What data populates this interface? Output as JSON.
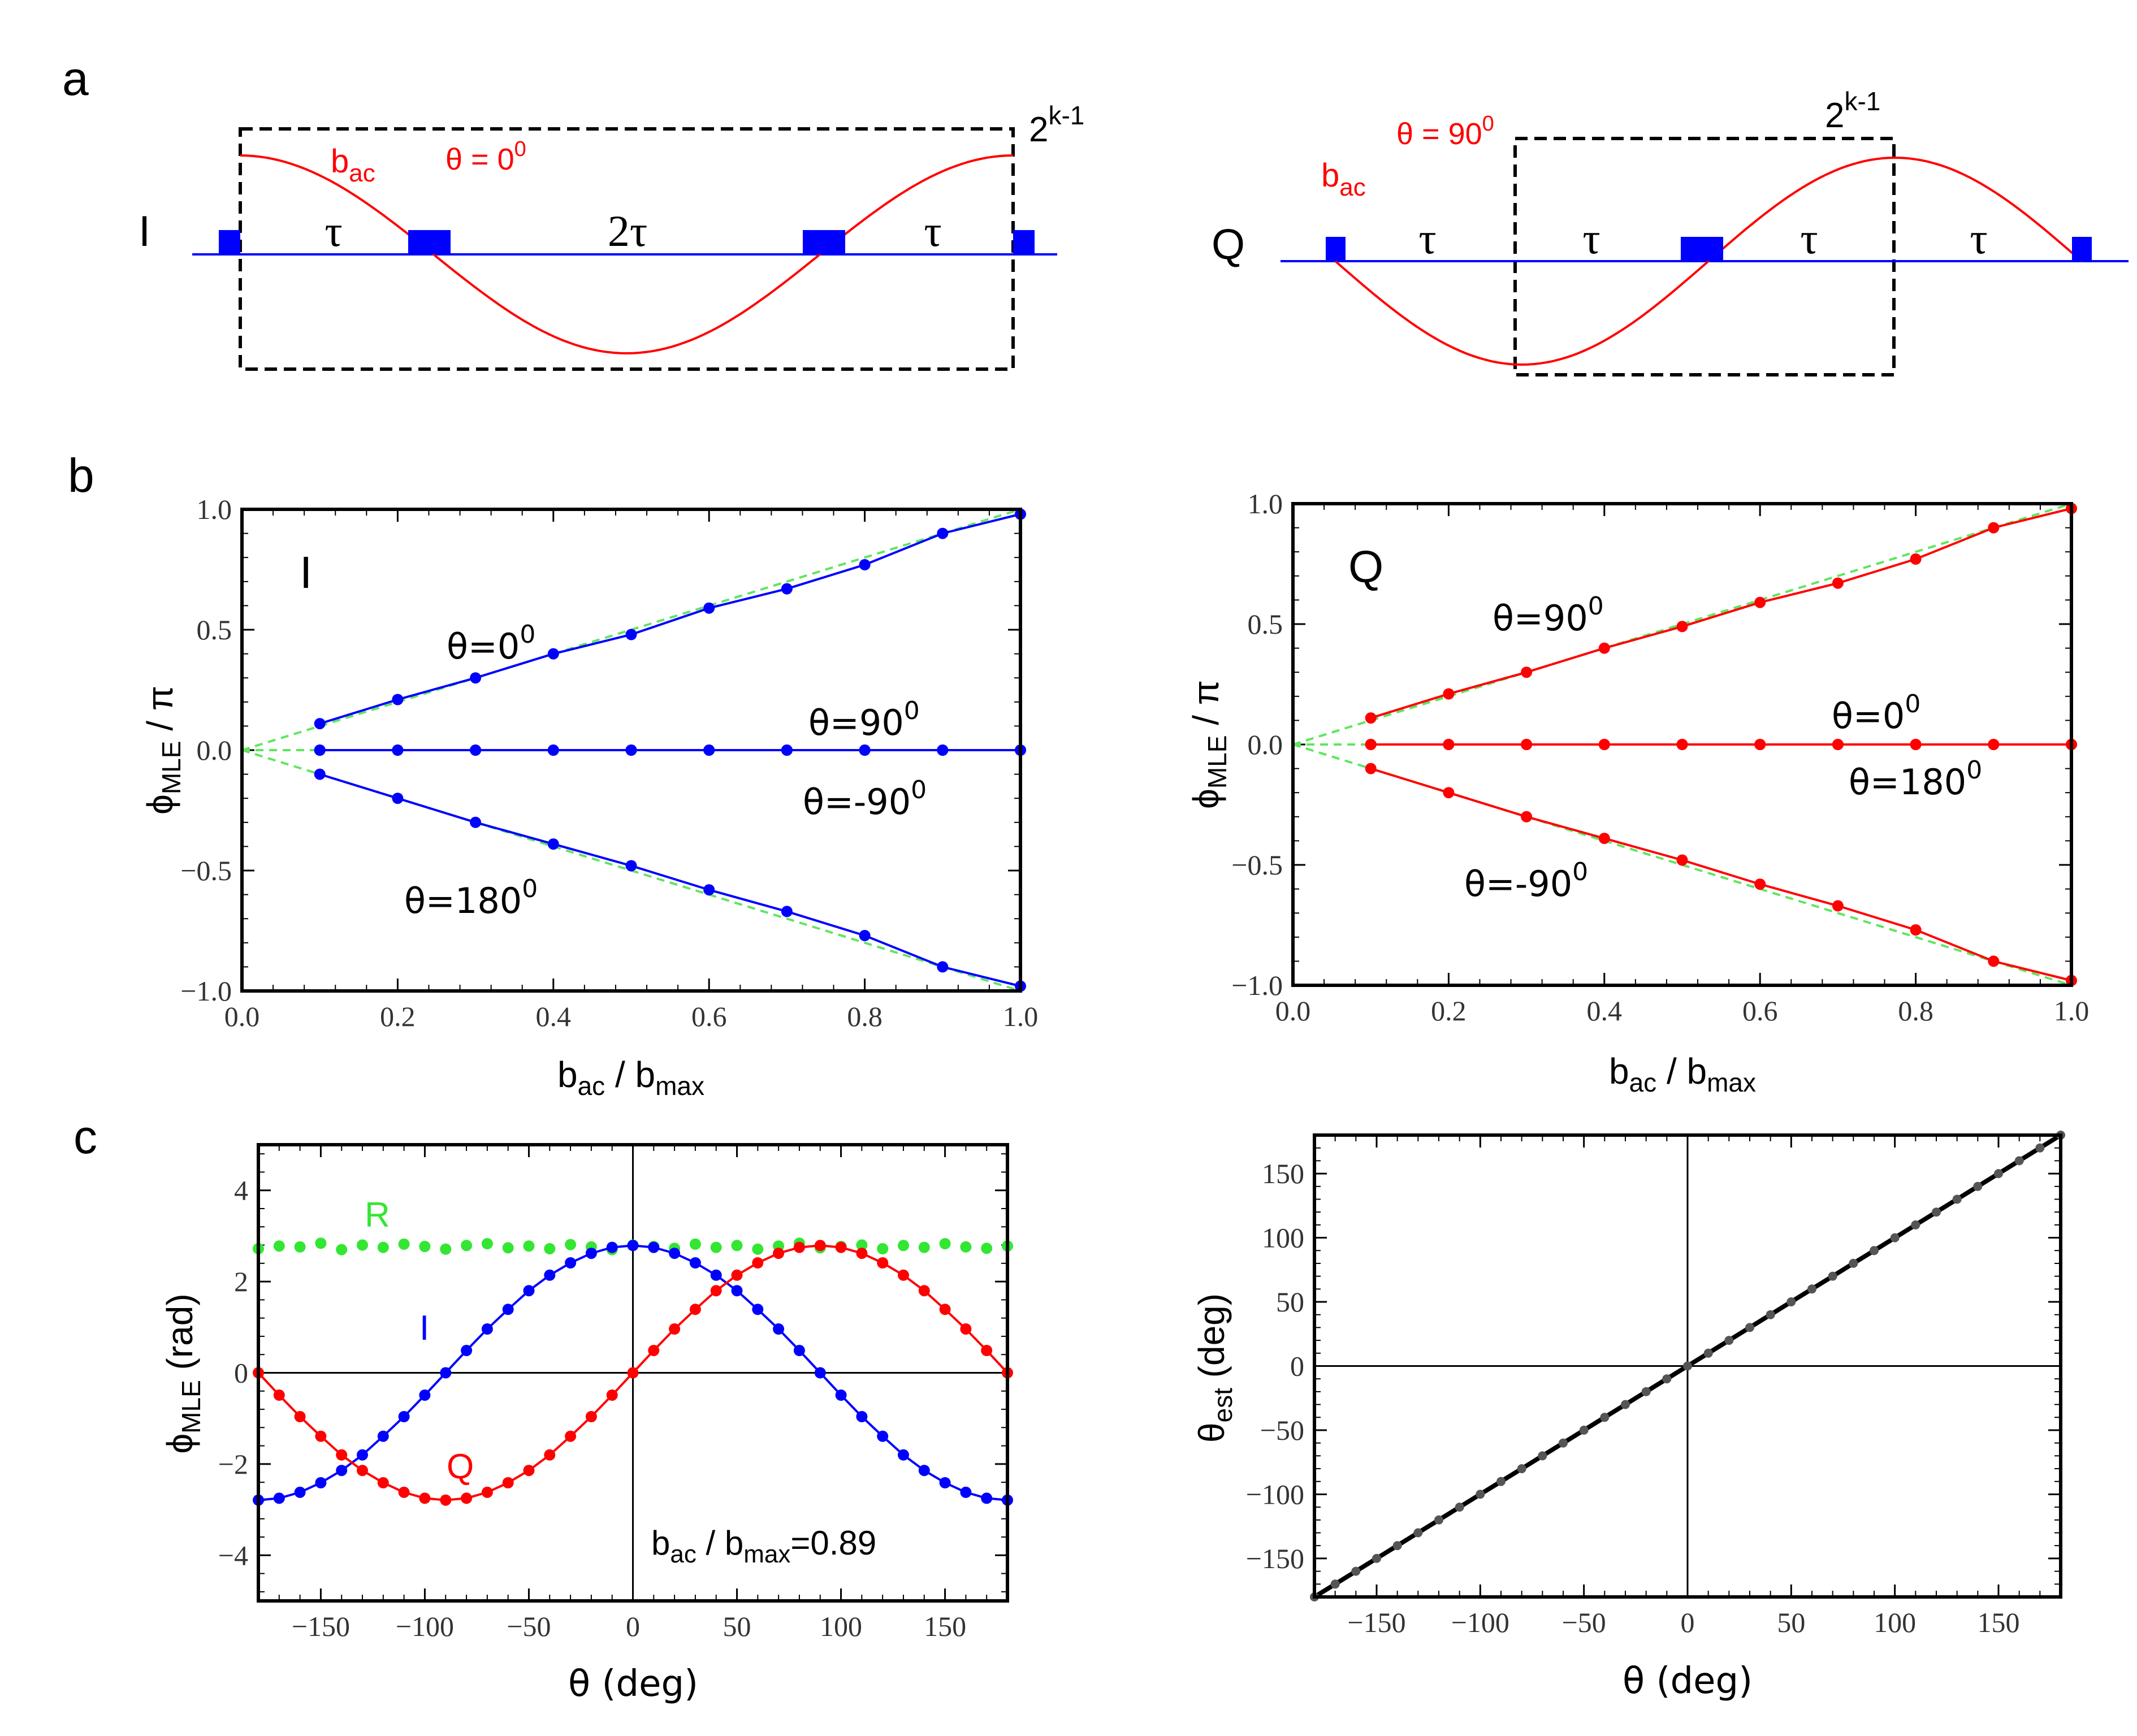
{
  "panel_labels": {
    "a": "a",
    "b": "b",
    "c": "c"
  },
  "schematic": {
    "I": {
      "label": "I",
      "signal_label": "b",
      "signal_sub": "ac",
      "phase_text": "θ = 0",
      "phase_sup": "0",
      "window_base": "2",
      "window_exp": "k-1",
      "intervals": [
        "τ",
        "2τ",
        "τ"
      ]
    },
    "Q": {
      "label": "Q",
      "signal_label": "b",
      "signal_sub": "ac",
      "phase_text": "θ = 90",
      "phase_sup": "0",
      "window_base": "2",
      "window_exp": "k-1",
      "intervals": [
        "τ",
        "τ",
        "τ",
        "τ"
      ]
    }
  },
  "colors": {
    "blue": "#0000ff",
    "red": "#ff0000",
    "green": "#33e633",
    "black": "#000000",
    "ref_green": "#5ee65e"
  },
  "chart_data": [
    {
      "id": "b-left",
      "type": "line",
      "inset_label": "I",
      "xlabel": "b",
      "xlabel_sub1": "ac",
      "xlabel_mid": " / b",
      "xlabel_sub2": "max",
      "ylabel": "ϕ",
      "ylabel_sub": "MLE",
      "ylabel_tail": " / π",
      "xlim": [
        0,
        1
      ],
      "ylim": [
        -1,
        1
      ],
      "xticks": [
        "0.0",
        "0.2",
        "0.4",
        "0.6",
        "0.8",
        "1.0"
      ],
      "yticks": [
        "−1.0",
        "−0.5",
        "0.0",
        "0.5",
        "1.0"
      ],
      "x": [
        0.1,
        0.2,
        0.3,
        0.4,
        0.5,
        0.6,
        0.7,
        0.8,
        0.9,
        1.0
      ],
      "series": [
        {
          "name": "θ=0",
          "sup": "0",
          "color": "#0000ff",
          "values": [
            0.11,
            0.21,
            0.3,
            0.4,
            0.48,
            0.59,
            0.67,
            0.77,
            0.9,
            0.98
          ]
        },
        {
          "name": "θ=90",
          "sup": "0",
          "color": "#0000ff",
          "values": [
            0.0,
            0.0,
            0.0,
            0.0,
            0.0,
            0.0,
            0.0,
            0.0,
            0.0,
            0.0
          ]
        },
        {
          "name": "θ=-90",
          "sup": "0",
          "color": "#0000ff",
          "values": [
            0.0,
            0.0,
            0.0,
            0.0,
            0.0,
            0.0,
            0.0,
            0.0,
            0.0,
            0.0
          ]
        },
        {
          "name": "θ=180",
          "sup": "0",
          "color": "#0000ff",
          "values": [
            -0.1,
            -0.2,
            -0.3,
            -0.39,
            -0.48,
            -0.58,
            -0.67,
            -0.77,
            -0.9,
            -0.98
          ]
        }
      ],
      "reference": {
        "color": "#5ee65e",
        "slopes": [
          1,
          0,
          -1
        ]
      }
    },
    {
      "id": "b-right",
      "type": "line",
      "inset_label": "Q",
      "xlabel": "b",
      "xlabel_sub1": "ac",
      "xlabel_mid": " / b",
      "xlabel_sub2": "max",
      "ylabel": "ϕ",
      "ylabel_sub": "MLE",
      "ylabel_tail": " / π",
      "xlim": [
        0,
        1
      ],
      "ylim": [
        -1,
        1
      ],
      "xticks": [
        "0.0",
        "0.2",
        "0.4",
        "0.6",
        "0.8",
        "1.0"
      ],
      "yticks": [
        "−1.0",
        "−0.5",
        "0.0",
        "0.5",
        "1.0"
      ],
      "x": [
        0.1,
        0.2,
        0.3,
        0.4,
        0.5,
        0.6,
        0.7,
        0.8,
        0.9,
        1.0
      ],
      "series": [
        {
          "name": "θ=90",
          "sup": "0",
          "color": "#ff0000",
          "values": [
            0.11,
            0.21,
            0.3,
            0.4,
            0.49,
            0.59,
            0.67,
            0.77,
            0.9,
            0.98
          ]
        },
        {
          "name": "θ=0",
          "sup": "0",
          "color": "#ff0000",
          "values": [
            0.0,
            0.0,
            0.0,
            0.0,
            0.0,
            0.0,
            0.0,
            0.0,
            0.0,
            0.0
          ]
        },
        {
          "name": "θ=180",
          "sup": "0",
          "color": "#ff0000",
          "values": [
            0.0,
            0.0,
            0.0,
            0.0,
            0.0,
            0.0,
            0.0,
            0.0,
            0.0,
            0.0
          ]
        },
        {
          "name": "θ=-90",
          "sup": "0",
          "color": "#ff0000",
          "values": [
            -0.1,
            -0.2,
            -0.3,
            -0.39,
            -0.48,
            -0.58,
            -0.67,
            -0.77,
            -0.9,
            -0.98
          ]
        }
      ],
      "reference": {
        "color": "#5ee65e",
        "slopes": [
          1,
          0,
          -1
        ]
      }
    },
    {
      "id": "c-left",
      "type": "line",
      "xlabel": "θ  (deg)",
      "ylabel": "ϕ",
      "ylabel_sub": "MLE",
      "ylabel_tail": "  (rad)",
      "annotation": {
        "b": "b",
        "sub1": "ac",
        "mid": " / b",
        "sub2": "max",
        "value": "=0.89"
      },
      "xlim": [
        -180,
        180
      ],
      "ylim": [
        -5,
        5
      ],
      "xticks": [
        "−150",
        "−100",
        "−50",
        "0",
        "50",
        "100",
        "150"
      ],
      "yticks": [
        "−4",
        "−2",
        "0",
        "2",
        "4"
      ],
      "x_start": -180,
      "x_step": 10,
      "series": [
        {
          "name": "R",
          "color": "#33e633",
          "values": [
            2.72,
            2.78,
            2.76,
            2.84,
            2.7,
            2.8,
            2.75,
            2.82,
            2.77,
            2.71,
            2.79,
            2.83,
            2.74,
            2.78,
            2.72,
            2.81,
            2.76,
            2.7,
            2.8,
            2.77,
            2.73,
            2.82,
            2.75,
            2.79,
            2.71,
            2.78,
            2.84,
            2.74,
            2.77,
            2.8,
            2.72,
            2.79,
            2.75,
            2.83,
            2.76,
            2.73,
            2.78
          ]
        },
        {
          "name": "I",
          "color": "#0000ff",
          "values": [
            -2.79,
            -2.75,
            -2.62,
            -2.41,
            -2.14,
            -1.8,
            -1.39,
            -0.96,
            -0.49,
            0.0,
            0.49,
            0.96,
            1.39,
            1.8,
            2.14,
            2.41,
            2.62,
            2.75,
            2.79,
            2.75,
            2.62,
            2.41,
            2.14,
            1.8,
            1.39,
            0.96,
            0.49,
            0.0,
            -0.49,
            -0.96,
            -1.39,
            -1.8,
            -2.14,
            -2.41,
            -2.62,
            -2.75,
            -2.79
          ]
        },
        {
          "name": "Q",
          "color": "#ff0000",
          "values": [
            0.0,
            -0.49,
            -0.96,
            -1.39,
            -1.8,
            -2.14,
            -2.41,
            -2.62,
            -2.75,
            -2.79,
            -2.75,
            -2.62,
            -2.41,
            -2.14,
            -1.8,
            -1.39,
            -0.96,
            -0.49,
            0.0,
            0.49,
            0.96,
            1.39,
            1.8,
            2.14,
            2.41,
            2.62,
            2.75,
            2.79,
            2.75,
            2.62,
            2.41,
            2.14,
            1.8,
            1.39,
            0.96,
            0.49,
            0.0
          ]
        }
      ]
    },
    {
      "id": "c-right",
      "type": "line",
      "xlabel": "θ  (deg)",
      "ylabel": "θ",
      "ylabel_sub": "est",
      "ylabel_tail": "  (deg)",
      "xlim": [
        -180,
        180
      ],
      "ylim": [
        -180,
        180
      ],
      "xticks": [
        "−150",
        "−100",
        "−50",
        "0",
        "50",
        "100",
        "150"
      ],
      "yticks": [
        "−150",
        "−100",
        "−50",
        "0",
        "50",
        "100",
        "150"
      ],
      "x_start": -180,
      "x_step": 10,
      "series": [
        {
          "name": "estimate",
          "color": "#000000",
          "values": [
            -180,
            -170,
            -160,
            -150,
            -140,
            -130,
            -120,
            -110,
            -100,
            -90,
            -80,
            -70,
            -60,
            -50,
            -40,
            -30,
            -20,
            -10,
            0,
            10,
            20,
            30,
            40,
            50,
            60,
            70,
            80,
            90,
            100,
            110,
            120,
            130,
            140,
            150,
            160,
            170,
            180
          ]
        }
      ]
    }
  ]
}
